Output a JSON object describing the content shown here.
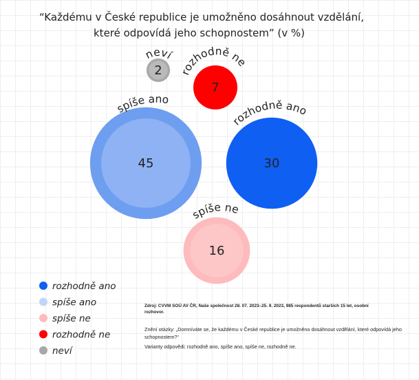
{
  "title": [
    "“Každému v České republice je umožněno dosáhnout vzdělání,",
    "které odpovídá jeho schopnostem” (v %)"
  ],
  "chart_data": {
    "type": "bubble",
    "unit": "%",
    "series": [
      {
        "name": "rozhodně ano",
        "value": 30,
        "color": "#0f5ff2",
        "inner_color": "#0f5ff2"
      },
      {
        "name": "spíše ano",
        "value": 45,
        "color": "#6e9ef0",
        "inner_color": "#8eb2f3"
      },
      {
        "name": "spíše ne",
        "value": 16,
        "color": "#fdbbbd",
        "inner_color": "#fdc7c8"
      },
      {
        "name": "rozhodně ne",
        "value": 7,
        "color": "#fe0000",
        "inner_color": "#fe0000"
      },
      {
        "name": "neví",
        "value": 2,
        "color": "#a8a8a8",
        "inner_color": "#bababa"
      }
    ],
    "legend_position": "bottom-left"
  },
  "legend": [
    {
      "label": "rozhodně ano",
      "color": "#0f5ff2"
    },
    {
      "label": "spíše ano",
      "color": "#c0d5f9"
    },
    {
      "label": "spíše ne",
      "color": "#fdbbbd"
    },
    {
      "label": "rozhodně ne",
      "color": "#fe0000"
    },
    {
      "label": "neví",
      "color": "#a8a8a8"
    }
  ],
  "notes": {
    "source": [
      "Zdroj: CVVM SOÚ AV ČR, Naše společnost 28. 07. 2023–25. 9. 2023, 985 respondentů starších 15 let, osobní",
      "rozhovor."
    ],
    "question": [
      "Znění otázky: „Domníváte se, že každému v České republice je umožněno dosáhnout vzdělání, které odpovídá jeho",
      "schopnostem?“"
    ],
    "variants": "Varianty odpovědi: rozhodně ano, spíše ano, spíše ne, rozhodně ne."
  }
}
